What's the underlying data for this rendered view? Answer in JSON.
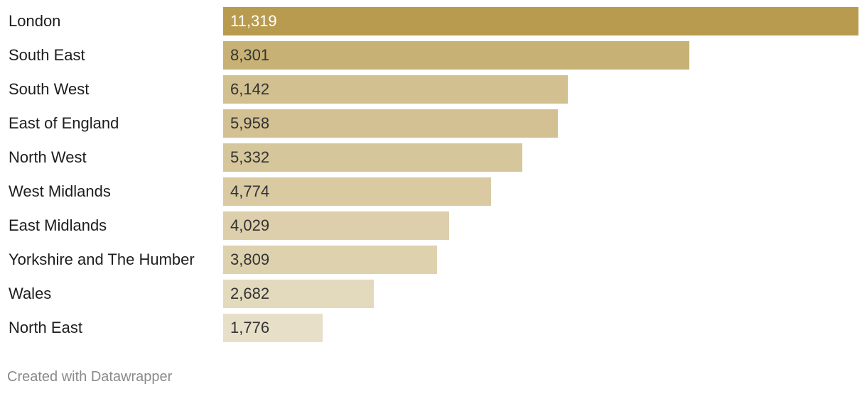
{
  "chart_data": {
    "type": "bar",
    "orientation": "horizontal",
    "categories": [
      "London",
      "South East",
      "South West",
      "East of England",
      "North West",
      "West Midlands",
      "East Midlands",
      "Yorkshire and The Humber",
      "Wales",
      "North East"
    ],
    "values": [
      11319,
      8301,
      6142,
      5958,
      5332,
      4774,
      4029,
      3809,
      2682,
      1776
    ],
    "value_labels": [
      "11,319",
      "8,301",
      "6,142",
      "5,958",
      "5,332",
      "4,774",
      "4,029",
      "3,809",
      "2,682",
      "1,776"
    ],
    "xlim": [
      0,
      11319
    ],
    "grid": false,
    "legend": "none",
    "colors": {
      "max": "#b89b4e",
      "min": "#e8dfc8",
      "label_on_dark": "#ffffff",
      "label_on_light": "#333333"
    }
  },
  "footer": {
    "credit": "Created with Datawrapper"
  }
}
